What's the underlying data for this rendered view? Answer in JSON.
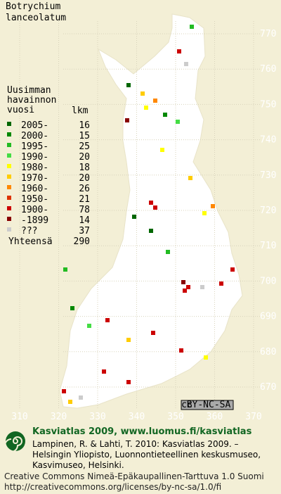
{
  "title": "Botrychium lanceolatum",
  "legend": {
    "header": "Uusimman havainnon vuosi",
    "count_header": "lkm",
    "rows": [
      {
        "label": "2005-",
        "count": 16,
        "color": "#006600"
      },
      {
        "label": "2000-",
        "count": 15,
        "color": "#008800"
      },
      {
        "label": "1995-",
        "count": 25,
        "color": "#22bb22"
      },
      {
        "label": "1990-",
        "count": 20,
        "color": "#44dd44"
      },
      {
        "label": "1980-",
        "count": 18,
        "color": "#ffff00"
      },
      {
        "label": "1970-",
        "count": 20,
        "color": "#ffcc00"
      },
      {
        "label": "1960-",
        "count": 26,
        "color": "#ff8800"
      },
      {
        "label": "1950-",
        "count": 21,
        "color": "#dd3300"
      },
      {
        "label": "1900-",
        "count": 78,
        "color": "#cc0000"
      },
      {
        "label": "-1899",
        "count": 14,
        "color": "#880000"
      },
      {
        "label": "???",
        "count": 37,
        "color": "#cccccc"
      }
    ],
    "total": {
      "label": "Yhteensä",
      "count": 290
    }
  },
  "grid": {
    "northing": [
      770,
      760,
      750,
      740,
      730,
      720,
      710,
      700,
      690,
      680,
      670
    ],
    "easting": [
      310,
      320,
      330,
      340,
      350,
      360,
      370
    ]
  },
  "badge": {
    "cc": "cc",
    "license": "BY-NC-SA"
  },
  "footer": {
    "brand": "Kasviatlas 2009, www.luomus.fi/kasviatlas",
    "citation": "Lampinen, R. & Lahti, T. 2010: Kasviatlas 2009. – Helsingin Yliopisto, Luonnontieteellinen keskusmuseo, Kasvimuseo, Helsinki.",
    "license": "Creative Commons Nimeä-Epäkaupallinen-Tarttuva 1.0 Suomi",
    "url": "http://creativecommons.org/licenses/by-nc-sa/1.0/fi"
  }
}
